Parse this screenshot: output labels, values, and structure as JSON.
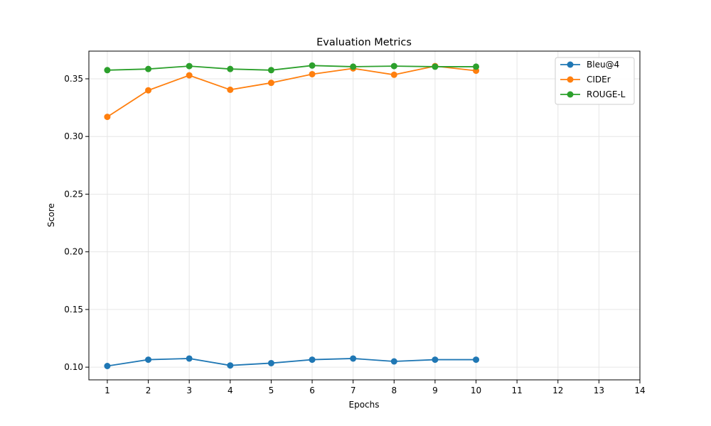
{
  "chart_data": {
    "type": "line",
    "title": "Evaluation Metrics",
    "xlabel": "Epochs",
    "ylabel": "Score",
    "x": [
      1,
      2,
      3,
      4,
      5,
      6,
      7,
      8,
      9,
      10
    ],
    "xlim": [
      0.55,
      14
    ],
    "ylim": [
      0.089,
      0.374
    ],
    "xticks": [
      "1",
      "2",
      "3",
      "4",
      "5",
      "6",
      "7",
      "8",
      "9",
      "10",
      "11",
      "12",
      "13",
      "14"
    ],
    "yticks": [
      "0.10",
      "0.15",
      "0.20",
      "0.25",
      "0.30",
      "0.35"
    ],
    "grid": true,
    "legend_position": "top-right",
    "series": [
      {
        "name": "Bleu@4",
        "color": "#1f77b4",
        "values": [
          0.101,
          0.1065,
          0.1075,
          0.1015,
          0.1035,
          0.1065,
          0.1075,
          0.105,
          0.1065,
          0.1065
        ]
      },
      {
        "name": "CIDEr",
        "color": "#ff7f0e",
        "values": [
          0.317,
          0.34,
          0.353,
          0.3405,
          0.3465,
          0.354,
          0.359,
          0.3535,
          0.361,
          0.357
        ]
      },
      {
        "name": "ROUGE-L",
        "color": "#2ca02c",
        "values": [
          0.3575,
          0.3585,
          0.361,
          0.3585,
          0.3575,
          0.3615,
          0.3605,
          0.361,
          0.3605,
          0.3605
        ]
      }
    ]
  }
}
